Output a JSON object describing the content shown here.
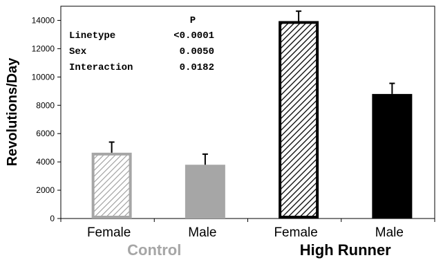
{
  "chart_data": {
    "type": "bar",
    "ylabel": "Revolutions/Day",
    "ylim": [
      0,
      15000
    ],
    "yticks": [
      0,
      2000,
      4000,
      6000,
      8000,
      10000,
      12000,
      14000
    ],
    "grid": false,
    "bars": [
      {
        "category": "Female",
        "group": "Control",
        "value": 4650,
        "error": 750,
        "fill": "hatched",
        "color": "#a6a6a6"
      },
      {
        "category": "Male",
        "group": "Control",
        "value": 3800,
        "error": 750,
        "fill": "solid",
        "color": "#a6a6a6"
      },
      {
        "category": "Female",
        "group": "High Runner",
        "value": 13950,
        "error": 700,
        "fill": "hatched",
        "color": "#000000"
      },
      {
        "category": "Male",
        "group": "High Runner",
        "value": 8800,
        "error": 750,
        "fill": "solid",
        "color": "#000000"
      }
    ],
    "groups": [
      {
        "label": "Control",
        "color": "#a6a6a6"
      },
      {
        "label": "High Runner",
        "color": "#000000"
      }
    ],
    "stats_table": {
      "header": "P",
      "rows": [
        {
          "label": "Linetype",
          "value": "<0.0001"
        },
        {
          "label": "Sex",
          "value": "0.0050"
        },
        {
          "label": "Interaction",
          "value": "0.0182"
        }
      ]
    }
  }
}
